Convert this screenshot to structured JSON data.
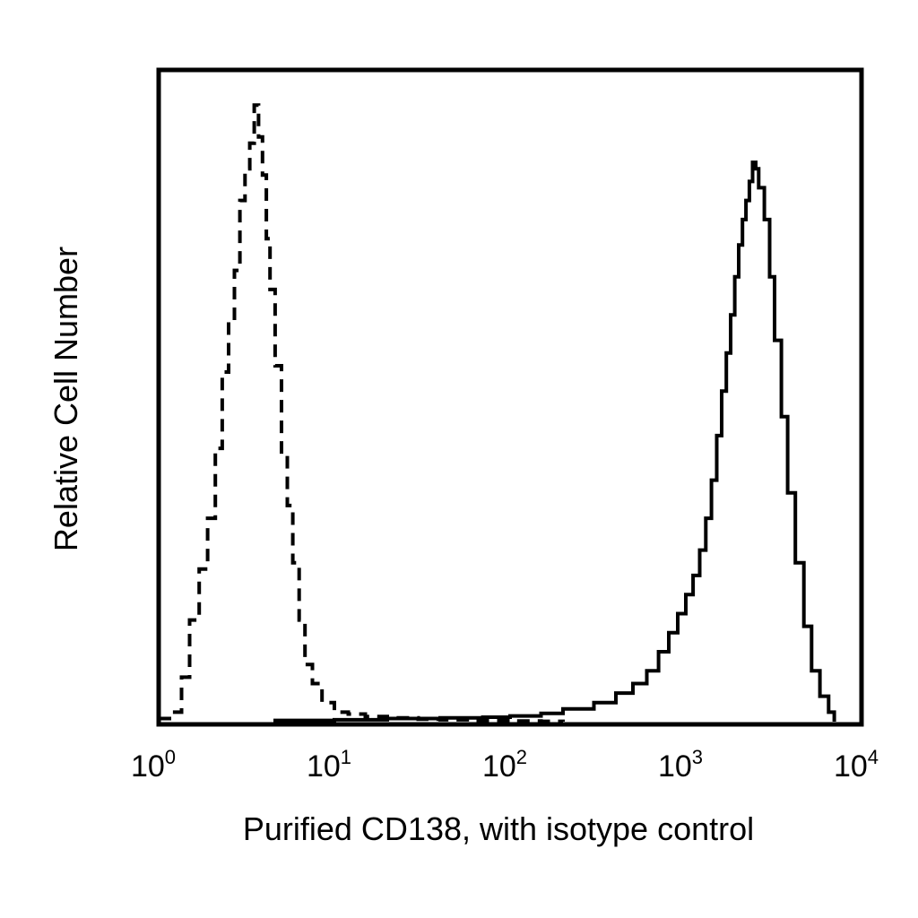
{
  "chart_data": {
    "type": "line",
    "title": "",
    "xlabel": "Purified CD138, with isotype control",
    "ylabel": "Relative Cell Number",
    "x_scale": "log",
    "xlim": [
      1,
      10000
    ],
    "ylim": [
      0,
      100
    ],
    "grid": false,
    "legend": "none",
    "x_ticks": [
      {
        "base": "10",
        "exp": "0",
        "value": 1
      },
      {
        "base": "10",
        "exp": "1",
        "value": 10
      },
      {
        "base": "10",
        "exp": "2",
        "value": 100
      },
      {
        "base": "10",
        "exp": "3",
        "value": 1000
      },
      {
        "base": "10",
        "exp": "4",
        "value": 10000
      }
    ],
    "series": [
      {
        "style": "dashed",
        "color": "#000000",
        "x": [
          1.0,
          1.2,
          1.35,
          1.5,
          1.7,
          1.9,
          2.1,
          2.3,
          2.5,
          2.7,
          2.9,
          3.1,
          3.3,
          3.5,
          3.7,
          3.9,
          4.1,
          4.3,
          4.6,
          5.0,
          5.4,
          5.8,
          6.3,
          6.8,
          7.5,
          8.5,
          10,
          12,
          15,
          20,
          30,
          40,
          60,
          100,
          150,
          200
        ],
        "y": [
          0.5,
          1.5,
          7,
          16,
          24,
          32,
          43,
          55,
          63,
          71,
          82,
          87,
          91,
          97,
          92,
          86,
          76,
          68,
          56,
          42,
          34,
          25,
          16,
          9,
          6,
          3,
          1.5,
          1.2,
          0.8,
          0.6,
          0.4,
          0.3,
          0.2,
          0.1,
          0.05,
          0
        ]
      },
      {
        "style": "solid",
        "color": "#000000",
        "x": [
          4.5,
          10,
          20,
          40,
          70,
          100,
          150,
          200,
          300,
          400,
          500,
          600,
          700,
          800,
          900,
          1000,
          1100,
          1200,
          1300,
          1400,
          1500,
          1600,
          1700,
          1800,
          1900,
          2000,
          2100,
          2200,
          2300,
          2400,
          2500,
          2600,
          2800,
          3000,
          3200,
          3500,
          3800,
          4200,
          4700,
          5200,
          5800,
          6500,
          7000
        ],
        "y": [
          0.2,
          0.3,
          0.5,
          0.6,
          0.7,
          0.9,
          1.3,
          2,
          3,
          4.5,
          6,
          8,
          11,
          14,
          17,
          20,
          23,
          27,
          32,
          38,
          45,
          52,
          58,
          64,
          70,
          75,
          79,
          82,
          85,
          88,
          87,
          84,
          79,
          70,
          60,
          48,
          36,
          25,
          15,
          8,
          4,
          1.5,
          0
        ]
      }
    ]
  }
}
